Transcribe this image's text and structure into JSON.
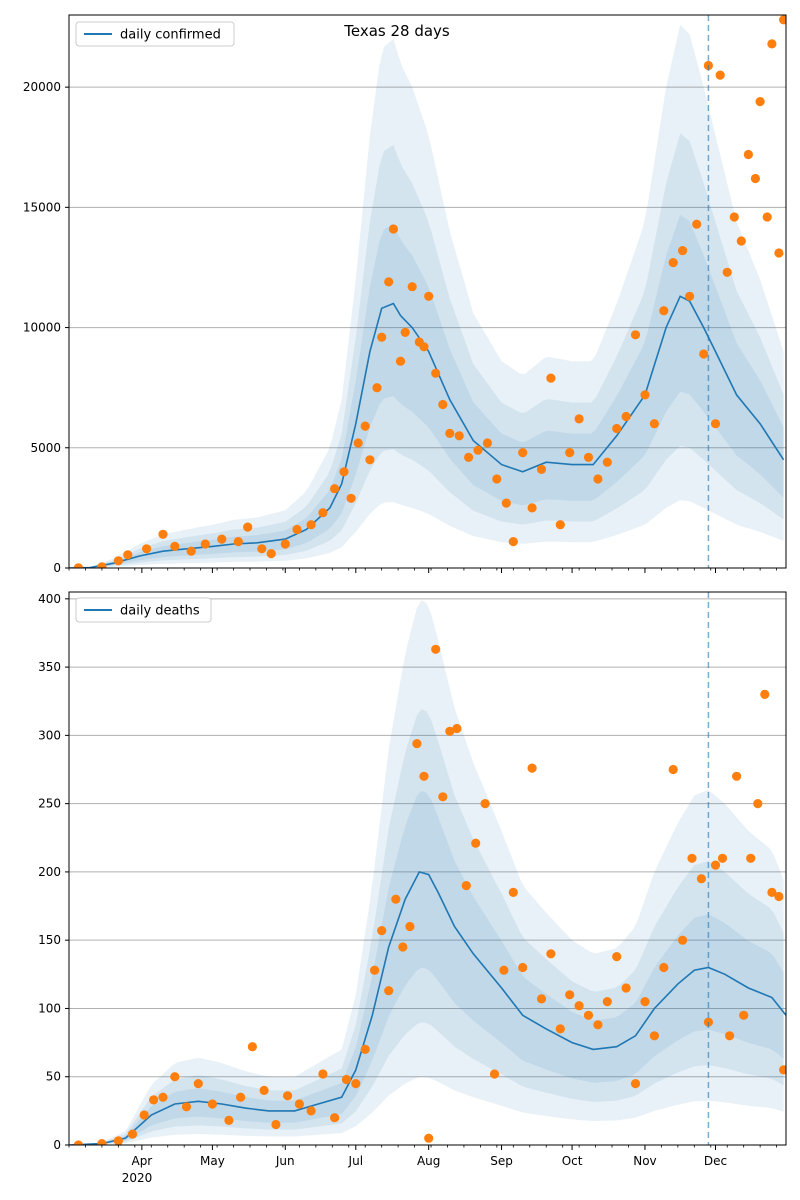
{
  "chart_data": [
    {
      "type": "line",
      "title": "Texas 28 days",
      "legend": {
        "entries": [
          "daily confirmed"
        ],
        "placement": "top-left"
      },
      "series": [
        {
          "name": "daily confirmed",
          "kind": "line",
          "color": "#1f77b4",
          "x": [
            "2020-03-01",
            "2020-03-10",
            "2020-03-20",
            "2020-03-31",
            "2020-04-10",
            "2020-04-20",
            "2020-05-01",
            "2020-05-10",
            "2020-05-20",
            "2020-06-01",
            "2020-06-10",
            "2020-06-20",
            "2020-06-25",
            "2020-07-01",
            "2020-07-07",
            "2020-07-12",
            "2020-07-17",
            "2020-07-20",
            "2020-07-25",
            "2020-08-01",
            "2020-08-10",
            "2020-08-20",
            "2020-09-01",
            "2020-09-10",
            "2020-09-20",
            "2020-10-01",
            "2020-10-10",
            "2020-10-20",
            "2020-11-01",
            "2020-11-10",
            "2020-11-16",
            "2020-11-20",
            "2020-11-26",
            "2020-12-01",
            "2020-12-10",
            "2020-12-20",
            "2020-12-30"
          ],
          "y": [
            0,
            20,
            200,
            500,
            700,
            800,
            900,
            1000,
            1050,
            1200,
            1600,
            2500,
            3500,
            6000,
            9000,
            10800,
            11000,
            10500,
            10000,
            9000,
            7000,
            5300,
            4300,
            4000,
            4400,
            4300,
            4300,
            5500,
            7200,
            10000,
            11300,
            11100,
            10000,
            9000,
            7200,
            6000,
            4500
          ]
        },
        {
          "name": "observed",
          "kind": "points",
          "color": "#ff7f0e",
          "x": [
            "2020-03-05",
            "2020-03-15",
            "2020-03-22",
            "2020-03-26",
            "2020-04-03",
            "2020-04-10",
            "2020-04-15",
            "2020-04-22",
            "2020-04-28",
            "2020-05-05",
            "2020-05-12",
            "2020-05-16",
            "2020-05-22",
            "2020-05-26",
            "2020-06-01",
            "2020-06-06",
            "2020-06-12",
            "2020-06-17",
            "2020-06-22",
            "2020-06-26",
            "2020-06-29",
            "2020-07-02",
            "2020-07-05",
            "2020-07-07",
            "2020-07-10",
            "2020-07-12",
            "2020-07-15",
            "2020-07-17",
            "2020-07-20",
            "2020-07-22",
            "2020-07-25",
            "2020-07-28",
            "2020-07-30",
            "2020-08-01",
            "2020-08-04",
            "2020-08-07",
            "2020-08-10",
            "2020-08-14",
            "2020-08-18",
            "2020-08-22",
            "2020-08-26",
            "2020-08-30",
            "2020-09-03",
            "2020-09-06",
            "2020-09-10",
            "2020-09-14",
            "2020-09-18",
            "2020-09-22",
            "2020-09-26",
            "2020-09-30",
            "2020-10-04",
            "2020-10-08",
            "2020-10-12",
            "2020-10-16",
            "2020-10-20",
            "2020-10-24",
            "2020-10-28",
            "2020-11-01",
            "2020-11-05",
            "2020-11-09",
            "2020-11-13",
            "2020-11-17",
            "2020-11-20",
            "2020-11-23",
            "2020-11-26",
            "2020-11-28",
            "2020-12-01",
            "2020-12-03",
            "2020-12-06",
            "2020-12-09",
            "2020-12-12",
            "2020-12-15",
            "2020-12-18",
            "2020-12-20",
            "2020-12-23",
            "2020-12-25",
            "2020-12-28",
            "2020-12-30"
          ],
          "y": [
            10,
            50,
            300,
            550,
            800,
            1400,
            900,
            700,
            1000,
            1200,
            1100,
            1700,
            800,
            600,
            1000,
            1600,
            1800,
            2300,
            3300,
            4000,
            2900,
            5200,
            5900,
            4500,
            7500,
            9600,
            11900,
            14100,
            8600,
            9800,
            11700,
            9400,
            9200,
            11300,
            8100,
            6800,
            5600,
            5500,
            4600,
            4900,
            5200,
            3700,
            2700,
            1100,
            4800,
            2500,
            4100,
            7900,
            1800,
            4800,
            6200,
            4600,
            3700,
            4400,
            5800,
            6300,
            9700,
            7200,
            6000,
            10700,
            12700,
            13200,
            11300,
            14300,
            8900,
            20900,
            6000,
            20500,
            12300,
            14600,
            13600,
            17200,
            16200,
            19400,
            14600,
            21800,
            13100,
            22800
          ]
        }
      ],
      "xlim": [
        "2020-03-01",
        "2020-12-31"
      ],
      "ylim": [
        0,
        23000
      ],
      "yticks": [
        0,
        5000,
        10000,
        15000,
        20000
      ],
      "grid": "horizontal",
      "vline": "2020-11-28",
      "bands": "nested shaded uncertainty bands around the daily confirmed line"
    },
    {
      "type": "line",
      "title": "",
      "legend": {
        "entries": [
          "daily deaths"
        ],
        "placement": "top-left"
      },
      "series": [
        {
          "name": "daily deaths",
          "kind": "line",
          "color": "#1f77b4",
          "x": [
            "2020-03-01",
            "2020-03-15",
            "2020-03-25",
            "2020-04-05",
            "2020-04-15",
            "2020-04-25",
            "2020-05-05",
            "2020-05-15",
            "2020-05-25",
            "2020-06-05",
            "2020-06-15",
            "2020-06-25",
            "2020-07-01",
            "2020-07-08",
            "2020-07-15",
            "2020-07-22",
            "2020-07-28",
            "2020-08-01",
            "2020-08-05",
            "2020-08-12",
            "2020-08-20",
            "2020-09-01",
            "2020-09-10",
            "2020-09-20",
            "2020-10-01",
            "2020-10-10",
            "2020-10-20",
            "2020-10-28",
            "2020-11-05",
            "2020-11-15",
            "2020-11-22",
            "2020-11-28",
            "2020-12-05",
            "2020-12-15",
            "2020-12-25",
            "2020-12-31"
          ],
          "y": [
            0,
            1,
            5,
            22,
            30,
            32,
            30,
            27,
            25,
            25,
            30,
            35,
            55,
            95,
            145,
            180,
            200,
            198,
            185,
            160,
            140,
            115,
            95,
            85,
            75,
            70,
            72,
            80,
            100,
            118,
            128,
            130,
            125,
            115,
            108,
            95
          ]
        },
        {
          "name": "observed",
          "kind": "points",
          "color": "#ff7f0e",
          "x": [
            "2020-03-05",
            "2020-03-15",
            "2020-03-22",
            "2020-03-28",
            "2020-04-02",
            "2020-04-06",
            "2020-04-10",
            "2020-04-15",
            "2020-04-20",
            "2020-04-25",
            "2020-05-01",
            "2020-05-08",
            "2020-05-13",
            "2020-05-18",
            "2020-05-23",
            "2020-05-28",
            "2020-06-02",
            "2020-06-07",
            "2020-06-12",
            "2020-06-17",
            "2020-06-22",
            "2020-06-27",
            "2020-07-01",
            "2020-07-05",
            "2020-07-09",
            "2020-07-12",
            "2020-07-15",
            "2020-07-18",
            "2020-07-21",
            "2020-07-24",
            "2020-07-27",
            "2020-07-30",
            "2020-08-01",
            "2020-08-04",
            "2020-08-07",
            "2020-08-10",
            "2020-08-13",
            "2020-08-17",
            "2020-08-21",
            "2020-08-25",
            "2020-08-29",
            "2020-09-02",
            "2020-09-06",
            "2020-09-10",
            "2020-09-14",
            "2020-09-18",
            "2020-09-22",
            "2020-09-26",
            "2020-09-30",
            "2020-10-04",
            "2020-10-08",
            "2020-10-12",
            "2020-10-16",
            "2020-10-20",
            "2020-10-24",
            "2020-10-28",
            "2020-11-01",
            "2020-11-05",
            "2020-11-09",
            "2020-11-13",
            "2020-11-17",
            "2020-11-21",
            "2020-11-25",
            "2020-11-28",
            "2020-12-01",
            "2020-12-04",
            "2020-12-07",
            "2020-12-10",
            "2020-12-13",
            "2020-12-16",
            "2020-12-19",
            "2020-12-22",
            "2020-12-25",
            "2020-12-28",
            "2020-12-30"
          ],
          "y": [
            0,
            1,
            3,
            8,
            22,
            33,
            35,
            50,
            28,
            45,
            30,
            18,
            35,
            72,
            40,
            15,
            36,
            30,
            25,
            52,
            20,
            48,
            45,
            70,
            128,
            157,
            113,
            180,
            145,
            160,
            294,
            270,
            5,
            363,
            255,
            303,
            305,
            190,
            221,
            250,
            52,
            128,
            185,
            130,
            276,
            107,
            140,
            85,
            110,
            102,
            95,
            88,
            105,
            138,
            115,
            45,
            105,
            80,
            130,
            275,
            150,
            210,
            195,
            90,
            205,
            210,
            80,
            270,
            95,
            210,
            250,
            330,
            185,
            182,
            55
          ]
        }
      ],
      "xlim": [
        "2020-03-01",
        "2020-12-31"
      ],
      "ylim": [
        0,
        405
      ],
      "yticks": [
        0,
        50,
        100,
        150,
        200,
        250,
        300,
        350,
        400
      ],
      "grid": "horizontal",
      "vline": "2020-11-28",
      "bands": "nested shaded uncertainty bands around the daily deaths line"
    }
  ],
  "x_axis": {
    "ticks": [
      {
        "date": "2020-04-01",
        "label": "Apr"
      },
      {
        "date": "2020-05-01",
        "label": "May"
      },
      {
        "date": "2020-06-01",
        "label": "Jun"
      },
      {
        "date": "2020-07-01",
        "label": "Jul"
      },
      {
        "date": "2020-08-01",
        "label": "Aug"
      },
      {
        "date": "2020-09-01",
        "label": "Sep"
      },
      {
        "date": "2020-10-01",
        "label": "Oct"
      },
      {
        "date": "2020-11-01",
        "label": "Nov"
      },
      {
        "date": "2020-12-01",
        "label": "Dec"
      }
    ],
    "year_label": "2020"
  },
  "colors": {
    "line": "#1f77b4",
    "points": "#ff7f0e",
    "band": "#1f77b4",
    "grid": "#b0b0b0",
    "vline": "#1f77b4"
  }
}
